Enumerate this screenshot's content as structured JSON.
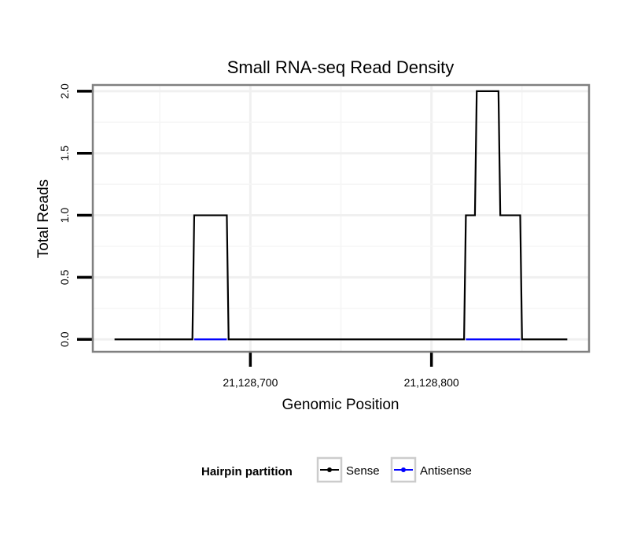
{
  "chart_data": {
    "type": "line",
    "title": "Small RNA-seq Read Density",
    "xlabel": "Genomic Position",
    "ylabel": "Total Reads",
    "xlim": [
      21128613,
      21128887
    ],
    "ylim": [
      -0.1,
      2.05
    ],
    "x_ticks": [
      {
        "value": 21128700,
        "label": "21,128,700"
      },
      {
        "value": 21128800,
        "label": "21,128,800"
      }
    ],
    "y_ticks": [
      {
        "value": 0,
        "label": "0.0"
      },
      {
        "value": 0.5,
        "label": "0.5"
      },
      {
        "value": 1,
        "label": "1.0"
      },
      {
        "value": 1.5,
        "label": "1.5"
      },
      {
        "value": 2,
        "label": "2.0"
      }
    ],
    "x_minor_gridlines": [
      21128650,
      21128750,
      21128850
    ],
    "legend": {
      "title": "Hairpin partition",
      "position": "bottom",
      "entries": [
        {
          "name": "Sense",
          "color": "#000000"
        },
        {
          "name": "Antisense",
          "color": "#0000ff"
        }
      ]
    },
    "series": [
      {
        "name": "Sense",
        "color": "#000000",
        "x": [
          21128625,
          21128668,
          21128669,
          21128687,
          21128688,
          21128818,
          21128819,
          21128824,
          21128825,
          21128837,
          21128838,
          21128849,
          21128850,
          21128875
        ],
        "y": [
          0,
          0,
          1,
          1,
          0,
          0,
          1,
          1,
          2,
          2,
          1,
          1,
          0,
          0
        ]
      },
      {
        "name": "Antisense",
        "color": "#0000ff",
        "x": [
          21128669,
          21128687,
          21128819,
          21128849
        ],
        "y": [
          0,
          0,
          0,
          0
        ],
        "segments": [
          [
            0,
            1
          ],
          [
            2,
            3
          ]
        ]
      }
    ]
  }
}
